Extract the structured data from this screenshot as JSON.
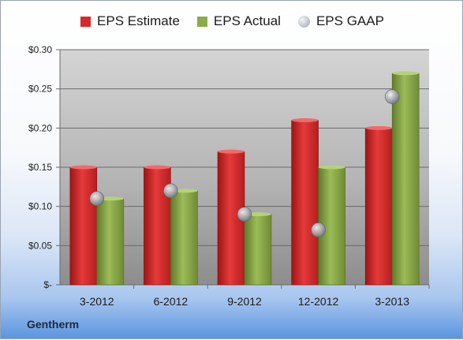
{
  "company": "Gentherm",
  "colors": {
    "estimate": "#d42a2a",
    "actual": "#8cab4b",
    "gaap": "#a9adb4"
  },
  "chart_data": {
    "type": "bar",
    "categories": [
      "3-2012",
      "6-2012",
      "9-2012",
      "12-2012",
      "3-2013"
    ],
    "series": [
      {
        "name": "EPS Estimate",
        "kind": "bar",
        "values": [
          0.15,
          0.15,
          0.17,
          0.21,
          0.2
        ]
      },
      {
        "name": "EPS Actual",
        "kind": "bar",
        "values": [
          0.11,
          0.12,
          0.09,
          0.15,
          0.27
        ]
      },
      {
        "name": "EPS GAAP",
        "kind": "marker",
        "values": [
          0.11,
          0.12,
          0.09,
          0.07,
          0.24
        ]
      }
    ],
    "y_ticks": [
      0.3,
      0.25,
      0.2,
      0.15,
      0.1,
      0.05,
      0
    ],
    "y_tick_labels": [
      "$0.30",
      "$0.25",
      "$0.20",
      "$0.15",
      "$0.10",
      "$0.05",
      "$-"
    ],
    "ylim": [
      0,
      0.3
    ],
    "grid": true,
    "legend_position": "top"
  }
}
